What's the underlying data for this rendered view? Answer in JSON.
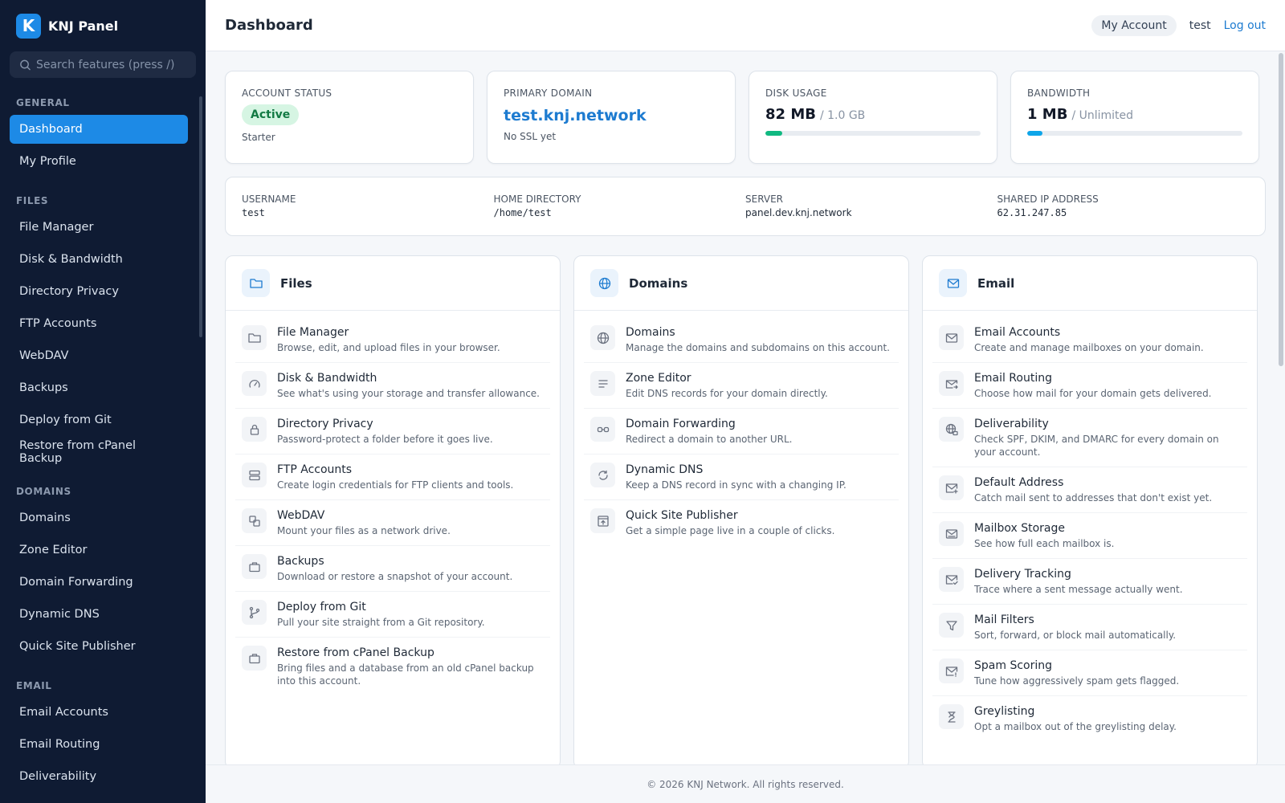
{
  "brand": {
    "logo_letter": "K",
    "name": "KNJ Panel"
  },
  "search": {
    "placeholder": "Search features (press /)"
  },
  "sidebar": {
    "general_heading": "GENERAL",
    "general": [
      "Dashboard",
      "My Profile"
    ],
    "files_heading": "FILES",
    "files": [
      "File Manager",
      "Disk & Bandwidth",
      "Directory Privacy",
      "FTP Accounts",
      "WebDAV",
      "Backups",
      "Deploy from Git",
      "Restore from cPanel Backup"
    ],
    "domains_heading": "DOMAINS",
    "domains": [
      "Domains",
      "Zone Editor",
      "Domain Forwarding",
      "Dynamic DNS",
      "Quick Site Publisher"
    ],
    "email_heading": "EMAIL",
    "email": [
      "Email Accounts",
      "Email Routing",
      "Deliverability"
    ],
    "active": "Dashboard"
  },
  "header": {
    "title": "Dashboard",
    "my_account": "My Account",
    "user": "test",
    "logout": "Log out"
  },
  "stats": {
    "account_status": {
      "label": "Account status",
      "value": "Active",
      "plan": "Starter"
    },
    "primary_domain": {
      "label": "Primary domain",
      "value": "test.knj.network",
      "ssl": "No SSL yet"
    },
    "disk_usage": {
      "label": "Disk usage",
      "used": "82 MB",
      "total": "/ 1.0 GB",
      "fraction": 0.08,
      "color": "#10b981"
    },
    "bandwidth": {
      "label": "Bandwidth",
      "used": "1 MB",
      "total": "/ Unlimited",
      "fraction": 0.07,
      "color": "#0ea5e9"
    }
  },
  "info": {
    "username": {
      "label": "Username",
      "value": "test"
    },
    "home": {
      "label": "Home directory",
      "value": "/home/test"
    },
    "server": {
      "label": "Server",
      "value": "panel.dev.knj.network"
    },
    "ip": {
      "label": "Shared IP address",
      "value": "62.31.247.85"
    }
  },
  "panels": {
    "files": {
      "title": "Files",
      "items": [
        {
          "title": "File Manager",
          "desc": "Browse, edit, and upload files in your browser.",
          "icon": "folder-icon"
        },
        {
          "title": "Disk & Bandwidth",
          "desc": "See what's using your storage and transfer allowance.",
          "icon": "gauge-icon"
        },
        {
          "title": "Directory Privacy",
          "desc": "Password-protect a folder before it goes live.",
          "icon": "lock-icon"
        },
        {
          "title": "FTP Accounts",
          "desc": "Create login credentials for FTP clients and tools.",
          "icon": "server-icon"
        },
        {
          "title": "WebDAV",
          "desc": "Mount your files as a network drive.",
          "icon": "copy-icon"
        },
        {
          "title": "Backups",
          "desc": "Download or restore a snapshot of your account.",
          "icon": "briefcase-icon"
        },
        {
          "title": "Deploy from Git",
          "desc": "Pull your site straight from a Git repository.",
          "icon": "git-branch-icon"
        },
        {
          "title": "Restore from cPanel Backup",
          "desc": "Bring files and a database from an old cPanel backup into this account.",
          "icon": "briefcase-icon"
        }
      ]
    },
    "domains": {
      "title": "Domains",
      "items": [
        {
          "title": "Domains",
          "desc": "Manage the domains and subdomains on this account.",
          "icon": "globe-icon"
        },
        {
          "title": "Zone Editor",
          "desc": "Edit DNS records for your domain directly.",
          "icon": "lines-icon"
        },
        {
          "title": "Domain Forwarding",
          "desc": "Redirect a domain to another URL.",
          "icon": "link-icon"
        },
        {
          "title": "Dynamic DNS",
          "desc": "Keep a DNS record in sync with a changing IP.",
          "icon": "refresh-icon"
        },
        {
          "title": "Quick Site Publisher",
          "desc": "Get a simple page live in a couple of clicks.",
          "icon": "upload-box-icon"
        }
      ]
    },
    "email": {
      "title": "Email",
      "items": [
        {
          "title": "Email Accounts",
          "desc": "Create and manage mailboxes on your domain.",
          "icon": "mail-icon"
        },
        {
          "title": "Email Routing",
          "desc": "Choose how mail for your domain gets delivered.",
          "icon": "mail-forward-icon"
        },
        {
          "title": "Deliverability",
          "desc": "Check SPF, DKIM, and DMARC for every domain on your account.",
          "icon": "globe-lock-icon"
        },
        {
          "title": "Default Address",
          "desc": "Catch mail sent to addresses that don't exist yet.",
          "icon": "mail-plus-icon"
        },
        {
          "title": "Mailbox Storage",
          "desc": "See how full each mailbox is.",
          "icon": "mailbox-icon"
        },
        {
          "title": "Delivery Tracking",
          "desc": "Trace where a sent message actually went.",
          "icon": "mail-check-icon"
        },
        {
          "title": "Mail Filters",
          "desc": "Sort, forward, or block mail automatically.",
          "icon": "filter-icon"
        },
        {
          "title": "Spam Scoring",
          "desc": "Tune how aggressively spam gets flagged.",
          "icon": "mail-alert-icon"
        },
        {
          "title": "Greylisting",
          "desc": "Opt a mailbox out of the greylisting delay.",
          "icon": "hourglass-icon"
        }
      ]
    }
  },
  "footer": {
    "text": "© 2026 KNJ Network. All rights reserved."
  }
}
